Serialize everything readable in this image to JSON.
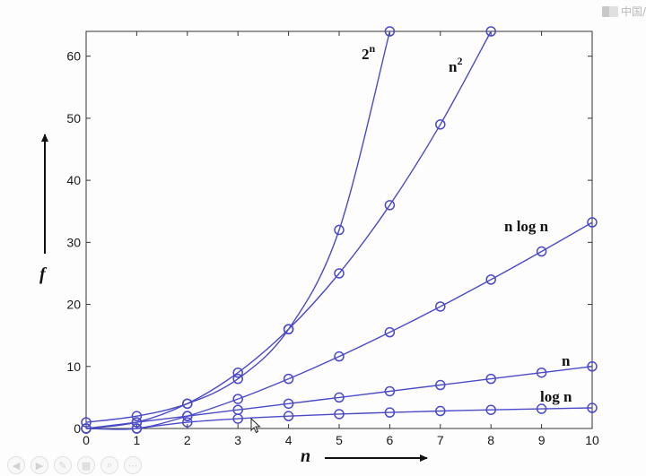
{
  "watermark": {
    "text": "中国/"
  },
  "toolbar": {
    "buttons": [
      {
        "name": "prev-slide-icon",
        "glyph": "◀"
      },
      {
        "name": "next-slide-icon",
        "glyph": "▶"
      },
      {
        "name": "pen-icon",
        "glyph": "✎"
      },
      {
        "name": "slides-grid-icon",
        "glyph": "▦"
      },
      {
        "name": "zoom-icon",
        "glyph": "⌕"
      },
      {
        "name": "more-options-icon",
        "glyph": "⋯"
      }
    ]
  },
  "chart_data": {
    "type": "line",
    "x": [
      0,
      1,
      2,
      3,
      4,
      5,
      6,
      7,
      8,
      9,
      10
    ],
    "xlim": [
      0,
      10
    ],
    "ylim": [
      0,
      64
    ],
    "xticks": [
      0,
      1,
      2,
      3,
      4,
      5,
      6,
      7,
      8,
      9,
      10
    ],
    "yticks": [
      0,
      10,
      20,
      30,
      40,
      50,
      60
    ],
    "xlabel": "n",
    "ylabel": "f",
    "grid": false,
    "line_color": "#4a4ac8",
    "marker": "circle",
    "series": [
      {
        "name": "2^n",
        "label_main": "2",
        "label_sup": "n",
        "values": [
          1,
          2,
          4,
          8,
          16,
          32,
          64,
          null,
          null,
          null,
          null
        ]
      },
      {
        "name": "n^2",
        "label_main": "n",
        "label_sup": "2",
        "values": [
          0,
          1,
          4,
          9,
          16,
          25,
          36,
          49,
          64,
          null,
          null
        ]
      },
      {
        "name": "n log n",
        "label_main": "n log n",
        "label_sup": "",
        "values": [
          0,
          0,
          2,
          4.75,
          8,
          11.61,
          15.51,
          19.65,
          24,
          28.53,
          33.22
        ]
      },
      {
        "name": "n",
        "label_main": "n",
        "label_sup": "",
        "values": [
          0,
          1,
          2,
          3,
          4,
          5,
          6,
          7,
          8,
          9,
          10
        ]
      },
      {
        "name": "log n",
        "label_main": "log n",
        "label_sup": "",
        "values": [
          null,
          0,
          1,
          1.58,
          2,
          2.32,
          2.58,
          2.81,
          3,
          3.17,
          3.32
        ]
      }
    ]
  }
}
